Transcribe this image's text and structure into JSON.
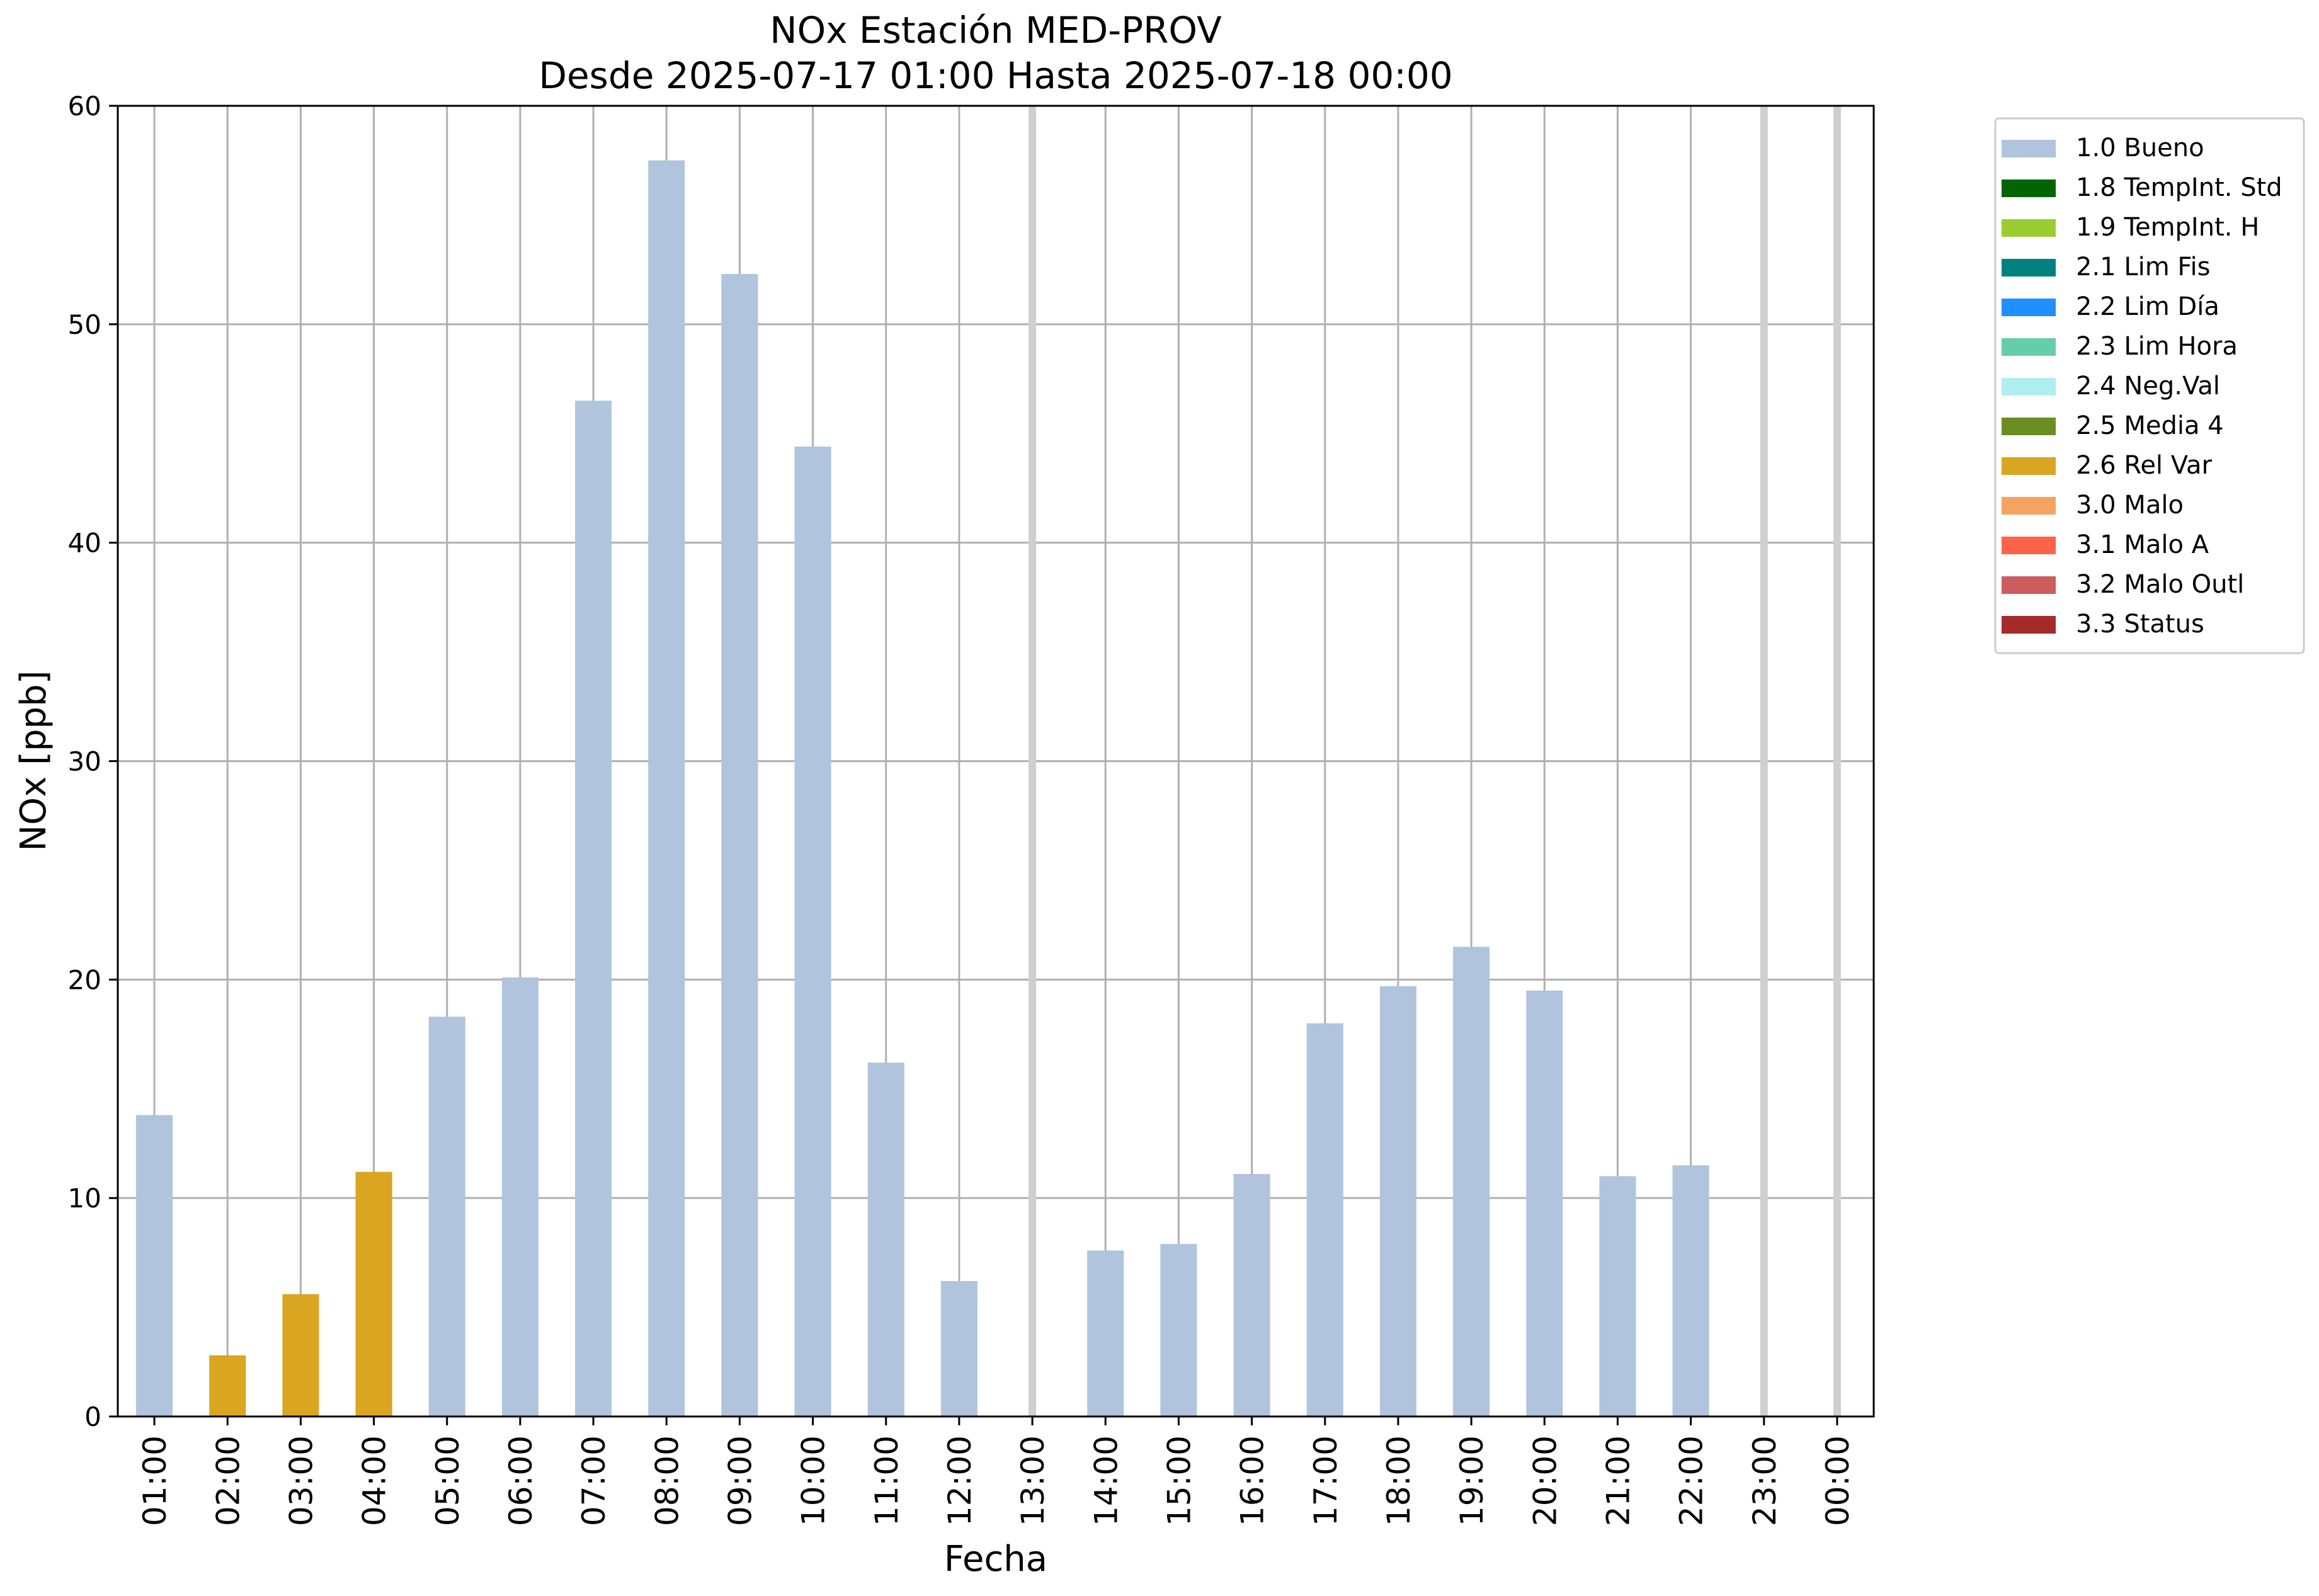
{
  "chart_data": {
    "type": "bar",
    "title": "NOx Estación MED-PROV",
    "subtitle": "Desde 2025-07-17 01:00 Hasta 2025-07-18 00:00",
    "xlabel": "Fecha",
    "ylabel": "NOx [ppb]",
    "ylim": [
      0,
      60
    ],
    "yticks": [
      0,
      10,
      20,
      30,
      40,
      50,
      60
    ],
    "grid": true,
    "legend_position": "outside-right",
    "categories": [
      "01:00",
      "02:00",
      "03:00",
      "04:00",
      "05:00",
      "06:00",
      "07:00",
      "08:00",
      "09:00",
      "10:00",
      "11:00",
      "12:00",
      "13:00",
      "14:00",
      "15:00",
      "16:00",
      "17:00",
      "18:00",
      "19:00",
      "20:00",
      "21:00",
      "22:00",
      "23:00",
      "00:00"
    ],
    "values": [
      13.8,
      2.8,
      5.6,
      11.2,
      18.3,
      20.1,
      46.5,
      57.5,
      52.3,
      44.4,
      16.2,
      6.2,
      null,
      7.6,
      7.9,
      11.1,
      18.0,
      19.7,
      21.5,
      19.5,
      11.0,
      11.5,
      null,
      null
    ],
    "flags": [
      "1.0 Bueno",
      "2.6 Rel Var",
      "2.6 Rel Var",
      "2.6 Rel Var",
      "1.0 Bueno",
      "1.0 Bueno",
      "1.0 Bueno",
      "1.0 Bueno",
      "1.0 Bueno",
      "1.0 Bueno",
      "1.0 Bueno",
      "1.0 Bueno",
      null,
      "1.0 Bueno",
      "1.0 Bueno",
      "1.0 Bueno",
      "1.0 Bueno",
      "1.0 Bueno",
      "1.0 Bueno",
      "1.0 Bueno",
      "1.0 Bueno",
      "1.0 Bueno",
      null,
      null
    ],
    "missing_markers": [
      "13:00",
      "23:00",
      "00:00"
    ],
    "legend": [
      {
        "label": "1.0 Bueno",
        "color": "#b0c4de"
      },
      {
        "label": "1.8 TempInt. Std",
        "color": "#006400"
      },
      {
        "label": "1.9 TempInt. H",
        "color": "#9acd32"
      },
      {
        "label": "2.1 Lim Fis",
        "color": "#008080"
      },
      {
        "label": "2.2 Lim Día",
        "color": "#1e90ff"
      },
      {
        "label": "2.3 Lim Hora",
        "color": "#66cdaa"
      },
      {
        "label": "2.4 Neg.Val",
        "color": "#afeeee"
      },
      {
        "label": "2.5 Media 4",
        "color": "#6b8e23"
      },
      {
        "label": "2.6 Rel Var",
        "color": "#daa520"
      },
      {
        "label": "3.0 Malo",
        "color": "#f4a460"
      },
      {
        "label": "3.1 Malo A",
        "color": "#ff6347"
      },
      {
        "label": "3.2 Malo Outl",
        "color": "#cd5c5c"
      },
      {
        "label": "3.3 Status",
        "color": "#a52a2a"
      }
    ]
  }
}
